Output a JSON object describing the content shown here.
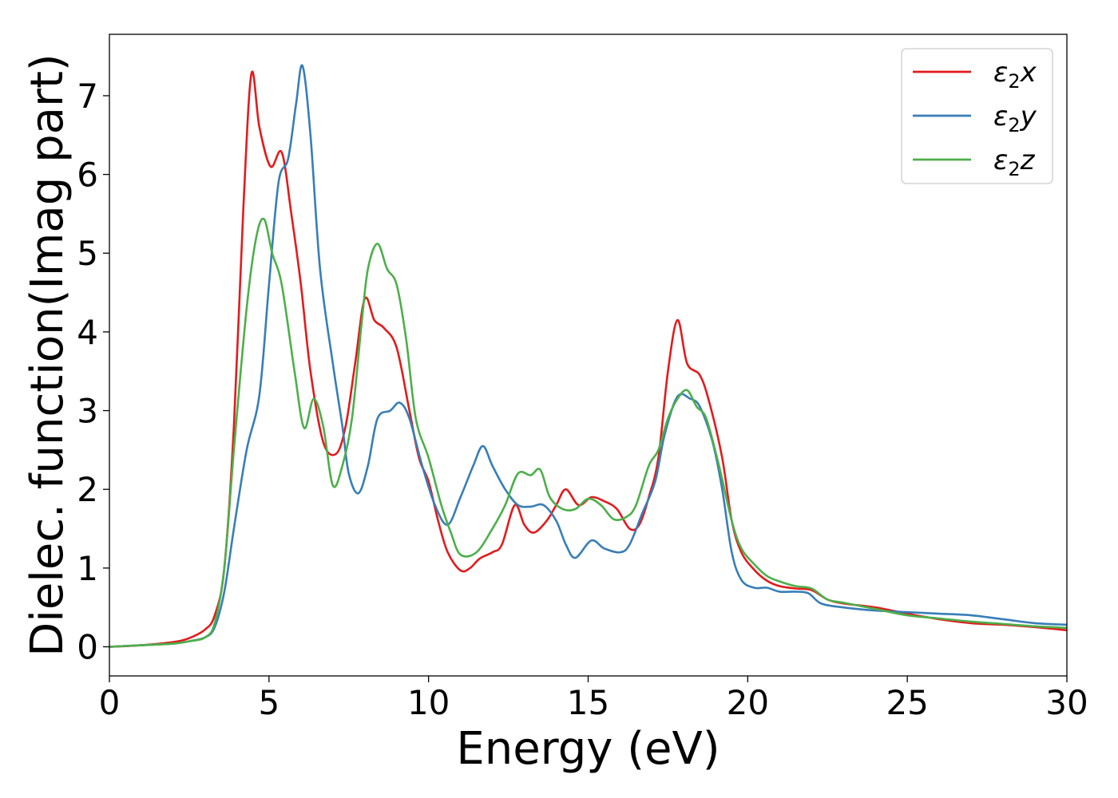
{
  "chart_data": {
    "type": "line",
    "title": "",
    "xlabel": "Energy (eV)",
    "ylabel": "Dielec. function(Imag part)",
    "xlim": [
      0,
      30
    ],
    "ylim": [
      -0.37,
      7.78
    ],
    "xticks": [
      "0",
      "5",
      "10",
      "15",
      "20",
      "25",
      "30"
    ],
    "yticks": [
      "0",
      "1",
      "2",
      "3",
      "4",
      "5",
      "6",
      "7"
    ],
    "grid": false,
    "legend_position": "top-right",
    "series": [
      {
        "name": "ε₂x",
        "legend_base": "ε",
        "legend_sub": "2",
        "legend_suffix": "x",
        "color": "#e41a1c",
        "points": [
          [
            0,
            0
          ],
          [
            1,
            0.02
          ],
          [
            2,
            0.06
          ],
          [
            2.5,
            0.11
          ],
          [
            3,
            0.22
          ],
          [
            3.3,
            0.4
          ],
          [
            3.6,
            1.0
          ],
          [
            3.9,
            2.8
          ],
          [
            4.2,
            5.6
          ],
          [
            4.45,
            7.28
          ],
          [
            4.7,
            6.6
          ],
          [
            5.05,
            6.1
          ],
          [
            5.4,
            6.28
          ],
          [
            5.7,
            5.5
          ],
          [
            6.0,
            4.6
          ],
          [
            6.3,
            3.5
          ],
          [
            6.7,
            2.6
          ],
          [
            7.1,
            2.45
          ],
          [
            7.4,
            2.8
          ],
          [
            7.7,
            3.6
          ],
          [
            8.0,
            4.42
          ],
          [
            8.3,
            4.15
          ],
          [
            8.6,
            4.05
          ],
          [
            9.0,
            3.8
          ],
          [
            9.4,
            3.0
          ],
          [
            9.7,
            2.4
          ],
          [
            10.0,
            2.1
          ],
          [
            10.3,
            1.6
          ],
          [
            10.6,
            1.2
          ],
          [
            11.0,
            0.97
          ],
          [
            11.3,
            1.0
          ],
          [
            11.6,
            1.12
          ],
          [
            12.0,
            1.2
          ],
          [
            12.3,
            1.3
          ],
          [
            12.7,
            1.8
          ],
          [
            13.0,
            1.55
          ],
          [
            13.3,
            1.45
          ],
          [
            13.7,
            1.6
          ],
          [
            14.0,
            1.8
          ],
          [
            14.3,
            2.0
          ],
          [
            14.7,
            1.8
          ],
          [
            15.1,
            1.9
          ],
          [
            15.5,
            1.85
          ],
          [
            15.9,
            1.75
          ],
          [
            16.3,
            1.5
          ],
          [
            16.6,
            1.55
          ],
          [
            16.9,
            1.9
          ],
          [
            17.2,
            2.4
          ],
          [
            17.5,
            3.5
          ],
          [
            17.8,
            4.15
          ],
          [
            18.1,
            3.6
          ],
          [
            18.5,
            3.45
          ],
          [
            18.8,
            3.1
          ],
          [
            19.2,
            2.4
          ],
          [
            19.5,
            1.6
          ],
          [
            19.8,
            1.2
          ],
          [
            20.2,
            0.98
          ],
          [
            20.6,
            0.84
          ],
          [
            21.0,
            0.77
          ],
          [
            21.5,
            0.74
          ],
          [
            22.0,
            0.72
          ],
          [
            22.5,
            0.6
          ],
          [
            23.0,
            0.55
          ],
          [
            24.0,
            0.5
          ],
          [
            25.0,
            0.42
          ],
          [
            26.0,
            0.35
          ],
          [
            27.0,
            0.3
          ],
          [
            28.0,
            0.28
          ],
          [
            29.0,
            0.25
          ],
          [
            30.0,
            0.21
          ]
        ]
      },
      {
        "name": "ε₂y",
        "legend_base": "ε",
        "legend_sub": "2",
        "legend_suffix": "y",
        "color": "#377eb8",
        "points": [
          [
            0,
            0
          ],
          [
            1,
            0.02
          ],
          [
            2,
            0.04
          ],
          [
            2.5,
            0.07
          ],
          [
            3,
            0.12
          ],
          [
            3.3,
            0.25
          ],
          [
            3.6,
            0.7
          ],
          [
            3.9,
            1.5
          ],
          [
            4.3,
            2.5
          ],
          [
            4.7,
            3.2
          ],
          [
            5.0,
            4.6
          ],
          [
            5.3,
            5.9
          ],
          [
            5.6,
            6.2
          ],
          [
            5.85,
            6.9
          ],
          [
            6.05,
            7.38
          ],
          [
            6.3,
            6.5
          ],
          [
            6.6,
            4.8
          ],
          [
            7.0,
            3.6
          ],
          [
            7.3,
            2.8
          ],
          [
            7.5,
            2.2
          ],
          [
            7.8,
            1.95
          ],
          [
            8.1,
            2.3
          ],
          [
            8.4,
            2.9
          ],
          [
            8.8,
            3.0
          ],
          [
            9.1,
            3.1
          ],
          [
            9.4,
            2.9
          ],
          [
            9.8,
            2.3
          ],
          [
            10.2,
            1.8
          ],
          [
            10.6,
            1.55
          ],
          [
            11.0,
            1.9
          ],
          [
            11.4,
            2.3
          ],
          [
            11.7,
            2.55
          ],
          [
            12.0,
            2.3
          ],
          [
            12.4,
            2.0
          ],
          [
            12.8,
            1.8
          ],
          [
            13.2,
            1.78
          ],
          [
            13.6,
            1.8
          ],
          [
            14.0,
            1.6
          ],
          [
            14.3,
            1.3
          ],
          [
            14.6,
            1.13
          ],
          [
            15.1,
            1.35
          ],
          [
            15.5,
            1.25
          ],
          [
            16.0,
            1.2
          ],
          [
            16.3,
            1.3
          ],
          [
            16.7,
            1.7
          ],
          [
            17.1,
            2.1
          ],
          [
            17.4,
            2.7
          ],
          [
            17.8,
            3.18
          ],
          [
            18.2,
            3.15
          ],
          [
            18.5,
            3.05
          ],
          [
            18.9,
            2.6
          ],
          [
            19.2,
            2.0
          ],
          [
            19.5,
            1.2
          ],
          [
            19.8,
            0.85
          ],
          [
            20.2,
            0.75
          ],
          [
            20.6,
            0.75
          ],
          [
            21.0,
            0.7
          ],
          [
            21.5,
            0.7
          ],
          [
            21.9,
            0.68
          ],
          [
            22.3,
            0.55
          ],
          [
            23.0,
            0.5
          ],
          [
            24.0,
            0.46
          ],
          [
            25.0,
            0.44
          ],
          [
            26.0,
            0.42
          ],
          [
            27.0,
            0.4
          ],
          [
            28.0,
            0.35
          ],
          [
            29.0,
            0.3
          ],
          [
            30.0,
            0.28
          ]
        ]
      },
      {
        "name": "ε₂z",
        "legend_base": "ε",
        "legend_sub": "2",
        "legend_suffix": "z",
        "color": "#4daf4a",
        "points": [
          [
            0,
            0
          ],
          [
            1,
            0.02
          ],
          [
            2,
            0.04
          ],
          [
            2.5,
            0.07
          ],
          [
            3,
            0.12
          ],
          [
            3.3,
            0.3
          ],
          [
            3.6,
            1.0
          ],
          [
            3.9,
            2.5
          ],
          [
            4.3,
            4.3
          ],
          [
            4.6,
            5.2
          ],
          [
            4.85,
            5.43
          ],
          [
            5.1,
            5.0
          ],
          [
            5.4,
            4.6
          ],
          [
            5.8,
            3.5
          ],
          [
            6.1,
            2.78
          ],
          [
            6.4,
            3.15
          ],
          [
            6.7,
            2.8
          ],
          [
            7.0,
            2.05
          ],
          [
            7.3,
            2.3
          ],
          [
            7.6,
            2.9
          ],
          [
            7.9,
            4.1
          ],
          [
            8.1,
            4.8
          ],
          [
            8.4,
            5.12
          ],
          [
            8.7,
            4.8
          ],
          [
            9.0,
            4.6
          ],
          [
            9.3,
            3.9
          ],
          [
            9.6,
            2.9
          ],
          [
            10.0,
            2.4
          ],
          [
            10.4,
            1.8
          ],
          [
            10.7,
            1.45
          ],
          [
            11.0,
            1.17
          ],
          [
            11.5,
            1.2
          ],
          [
            12.0,
            1.5
          ],
          [
            12.4,
            1.8
          ],
          [
            12.8,
            2.2
          ],
          [
            13.2,
            2.18
          ],
          [
            13.5,
            2.25
          ],
          [
            13.8,
            1.9
          ],
          [
            14.2,
            1.75
          ],
          [
            14.6,
            1.75
          ],
          [
            15.0,
            1.88
          ],
          [
            15.4,
            1.8
          ],
          [
            15.8,
            1.62
          ],
          [
            16.2,
            1.65
          ],
          [
            16.5,
            1.8
          ],
          [
            16.9,
            2.3
          ],
          [
            17.2,
            2.5
          ],
          [
            17.5,
            2.9
          ],
          [
            17.8,
            3.15
          ],
          [
            18.1,
            3.26
          ],
          [
            18.4,
            3.05
          ],
          [
            18.7,
            2.9
          ],
          [
            19.1,
            2.3
          ],
          [
            19.5,
            1.6
          ],
          [
            19.8,
            1.25
          ],
          [
            20.2,
            1.05
          ],
          [
            20.6,
            0.9
          ],
          [
            21.0,
            0.83
          ],
          [
            21.5,
            0.77
          ],
          [
            22.0,
            0.74
          ],
          [
            22.5,
            0.6
          ],
          [
            23.0,
            0.56
          ],
          [
            24.0,
            0.48
          ],
          [
            25.0,
            0.4
          ],
          [
            26.0,
            0.36
          ],
          [
            27.0,
            0.32
          ],
          [
            28.0,
            0.29
          ],
          [
            29.0,
            0.26
          ],
          [
            30.0,
            0.24
          ]
        ]
      }
    ]
  }
}
